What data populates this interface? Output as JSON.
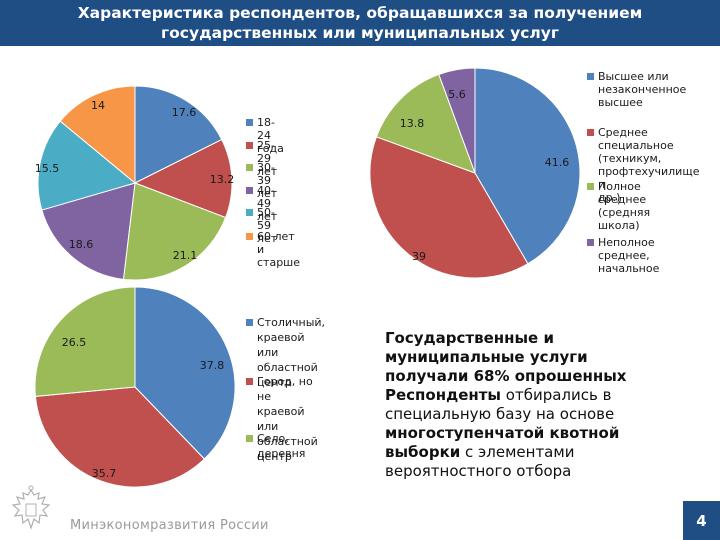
{
  "header": {
    "title": "Характеристика респондентов, обращавшихся за получением государственных или муниципальных услуг"
  },
  "colors": {
    "header_bg": "#1f4e85",
    "blue": "#4f81bd",
    "red": "#c0504d",
    "green": "#9bbb59",
    "purple": "#8064a2",
    "teal": "#4bacc6",
    "orange": "#f79646"
  },
  "chart_data": [
    {
      "type": "pie",
      "title": "",
      "categories": [
        "18-24 года",
        "25-29 лет",
        "30-39 лет",
        "40-49 лет",
        "50-59 лет",
        "60 лет и старше"
      ],
      "values": [
        17.6,
        13.2,
        21.1,
        18.6,
        15.5,
        14
      ],
      "colors": [
        "#4f81bd",
        "#c0504d",
        "#9bbb59",
        "#8064a2",
        "#4bacc6",
        "#f79646"
      ],
      "legend": "right"
    },
    {
      "type": "pie",
      "title": "",
      "categories": [
        "Высшее или незаконченное высшее",
        "Среднее специальное (техникум, профтехучилище и др.)",
        "Полное среднее (средняя школа)",
        "Неполное среднее, начальное"
      ],
      "values": [
        41.6,
        39,
        13.8,
        5.6
      ],
      "colors": [
        "#4f81bd",
        "#c0504d",
        "#9bbb59",
        "#8064a2"
      ],
      "legend": "right"
    },
    {
      "type": "pie",
      "title": "",
      "categories": [
        "Столичный, краевой или областной центр",
        "Город, но не краевой или областной центр",
        "Село, деревня"
      ],
      "values": [
        37.8,
        35.7,
        26.5
      ],
      "colors": [
        "#4f81bd",
        "#c0504d",
        "#9bbb59"
      ],
      "legend": "right"
    }
  ],
  "labels": {
    "age": [
      "17.6",
      "13.2",
      "21.1",
      "18.6",
      "15.5",
      "14"
    ],
    "education": [
      "41.6",
      "39",
      "13.8",
      "5.6"
    ],
    "settlement": [
      "37.8",
      "35.7",
      "26.5"
    ]
  },
  "legends": {
    "age": [
      "18-24 года",
      "25-29 лет",
      "30-39 лет",
      "40-49 лет",
      "50-59 лет",
      "60 лет и старше"
    ],
    "education": [
      [
        "Высшее или",
        "незаконченное",
        "высшее"
      ],
      [
        "Среднее специальное",
        "(техникум,",
        "профтехучилище и",
        "др.)"
      ],
      [
        "Полное среднее",
        "(средняя школа)"
      ],
      [
        "Неполное среднее,",
        "начальное"
      ]
    ],
    "settlement": [
      [
        "Столичный,",
        "краевой или",
        "областной центр"
      ],
      [
        "Город, но не",
        "краевой или",
        "областной центр"
      ],
      [
        "Село, деревня"
      ]
    ]
  },
  "summary": {
    "part1": "Государственные и муниципальные услуги получали 68% опрошенных",
    "part2": "Респонденты",
    "part3": " отбирались в специальную базу на основе ",
    "part4": "многоступенчатой квотной выборки",
    "part5": " с элементами вероятностного отбора"
  },
  "footer": {
    "ministry": "Минэкономразвития России",
    "page": "4"
  }
}
